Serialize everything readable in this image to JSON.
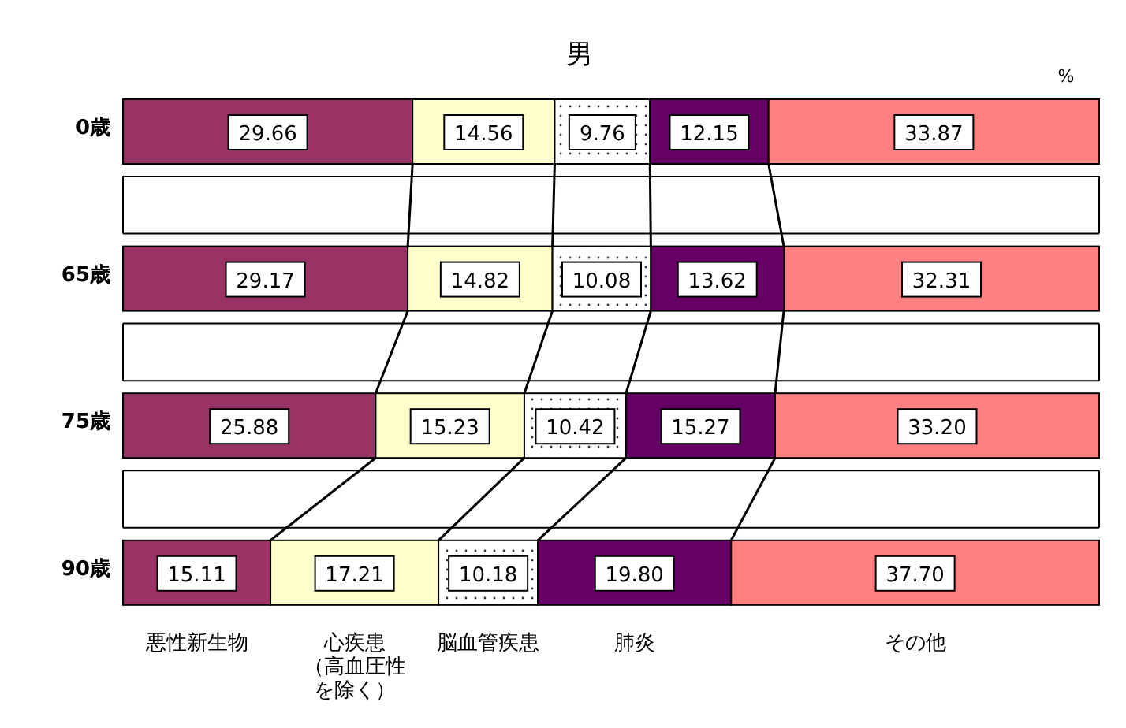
{
  "chart_data": {
    "type": "bar",
    "orientation": "horizontal",
    "stacked": true,
    "title": "男",
    "categories": [
      "0歳",
      "65歳",
      "75歳",
      "90歳"
    ],
    "series": [
      {
        "name": "悪性新生物",
        "color": "#993366",
        "values": [
          29.66,
          29.17,
          25.88,
          15.11
        ]
      },
      {
        "name": "心疾患（高血圧性を除く）",
        "color": "#ffffcc",
        "values": [
          14.56,
          14.82,
          15.23,
          17.21
        ]
      },
      {
        "name": "脳血管疾患",
        "color": "#ffffff",
        "values": [
          9.76,
          10.08,
          10.42,
          10.18
        ]
      },
      {
        "name": "肺炎",
        "color": "#660066",
        "values": [
          12.15,
          13.62,
          15.27,
          19.8
        ],
        "value_labels": [
          "12.15",
          "13.62",
          "15.27",
          "19.80"
        ]
      },
      {
        "name": "その他",
        "color": "#ff8080",
        "values": [
          33.87,
          32.31,
          33.2,
          37.7
        ],
        "value_labels": [
          "33.87",
          "32.31",
          "33.20",
          "37.70"
        ]
      }
    ],
    "xlim": [
      0,
      100
    ],
    "tick_labels": "y",
    "data_labels": true,
    "legend": false,
    "annotations": [
      "%"
    ]
  }
}
